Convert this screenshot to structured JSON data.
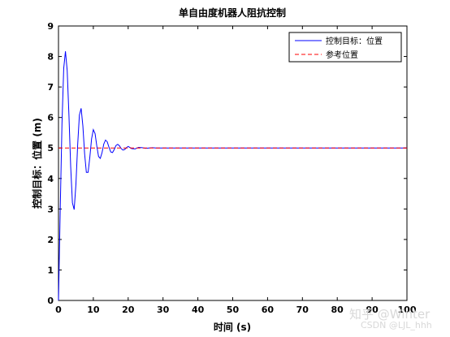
{
  "chart_data": {
    "type": "line",
    "title": "单自由度机器人阻抗控制",
    "xlabel": "时间 (s)",
    "ylabel": "控制目标：位置 (m)",
    "xlim": [
      0,
      100
    ],
    "ylim": [
      0,
      9
    ],
    "xticks": [
      0,
      10,
      20,
      30,
      40,
      50,
      60,
      70,
      80,
      90,
      100
    ],
    "yticks": [
      0,
      1,
      2,
      3,
      4,
      5,
      6,
      7,
      8,
      9
    ],
    "legend_position": "top-right",
    "grid": false,
    "series": [
      {
        "name": "控制目标：位置",
        "color": "#0000ff",
        "style": "solid",
        "x": [
          0,
          0.5,
          1,
          1.5,
          2,
          2.5,
          3,
          3.5,
          4,
          4.5,
          5,
          5.5,
          6,
          6.5,
          7,
          7.5,
          8,
          8.5,
          9,
          9.5,
          10,
          10.5,
          11,
          11.5,
          12,
          12.5,
          13,
          13.5,
          14,
          14.5,
          15,
          15.5,
          16,
          16.5,
          17,
          17.5,
          18,
          18.5,
          19,
          19.5,
          20,
          21,
          22,
          23,
          24,
          25,
          26,
          27,
          28,
          29,
          30,
          32,
          34,
          36,
          38,
          40,
          50,
          60,
          70,
          80,
          90,
          100
        ],
        "y": [
          0.0,
          2.96,
          5.78,
          7.61,
          8.17,
          7.54,
          6.08,
          4.39,
          3.2,
          2.98,
          3.8,
          5.09,
          6.08,
          6.3,
          5.72,
          4.81,
          4.2,
          4.2,
          4.7,
          5.3,
          5.6,
          5.47,
          5.06,
          4.72,
          4.66,
          4.85,
          5.13,
          5.26,
          5.2,
          5.02,
          4.87,
          4.85,
          4.95,
          5.08,
          5.12,
          5.07,
          4.98,
          4.93,
          4.95,
          5.01,
          5.05,
          4.98,
          4.97,
          5.02,
          5.01,
          4.99,
          5.0,
          5.01,
          5.0,
          5.0,
          5.0,
          5.0,
          5.0,
          5.0,
          5.0,
          5.0,
          5.0,
          5.0,
          5.0,
          5.0,
          5.0,
          5.0
        ]
      },
      {
        "name": "参考位置",
        "color": "#ff0000",
        "style": "dashed",
        "x": [
          0,
          100
        ],
        "y": [
          5,
          5
        ]
      }
    ]
  },
  "watermark": {
    "line1": "知乎 @Winter",
    "line2": "CSDN @LJL_hhh"
  }
}
